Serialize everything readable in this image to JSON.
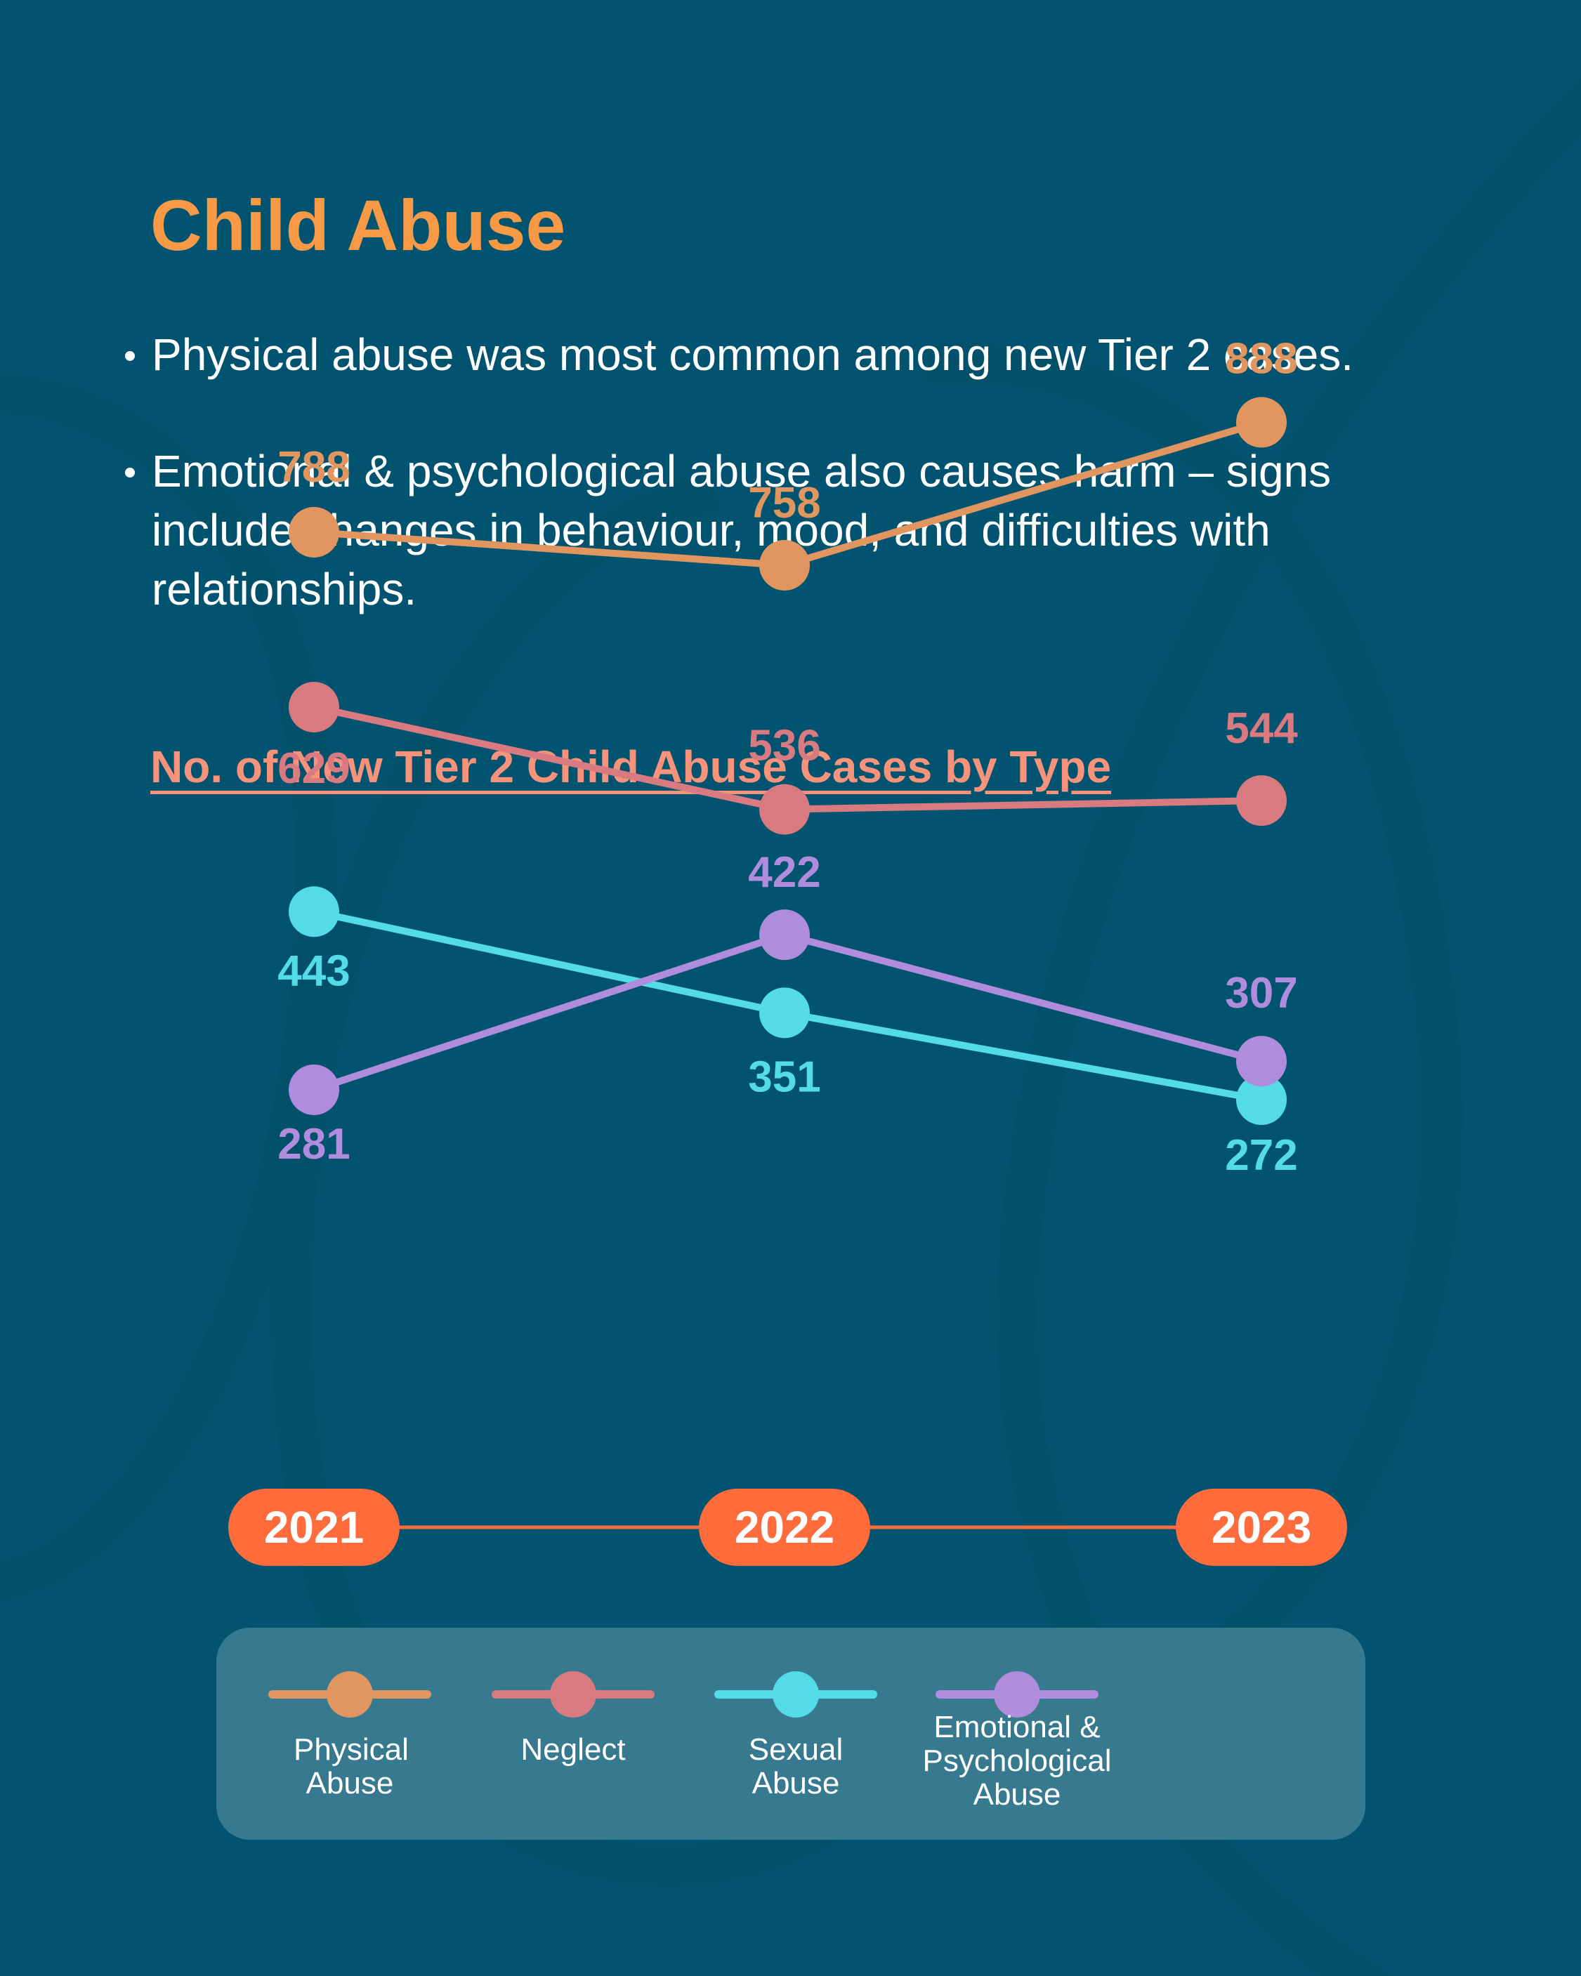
{
  "heading": "Child Abuse",
  "bullets": [
    "Physical abuse was most common among new Tier 2 cases.",
    "Emotional & psychological abuse also causes harm – signs include changes in behaviour, mood, and difficulties with relationships."
  ],
  "colors": {
    "background": "#02536f",
    "heading": "#f89a45",
    "chart_title": "#f7937a",
    "year_pill": "#ff6b3a"
  },
  "chart_data": {
    "type": "line",
    "title": "No. of New Tier 2 Child Abuse Cases by Type",
    "x": [
      "2021",
      "2022",
      "2023"
    ],
    "grid": false,
    "legend_position": "bottom",
    "series": [
      {
        "name": "Physical Abuse",
        "values": [
          788,
          758,
          888
        ],
        "color": "#e1965f"
      },
      {
        "name": "Neglect",
        "values": [
          629,
          536,
          544
        ],
        "color": "#d97a80"
      },
      {
        "name": "Sexual Abuse",
        "values": [
          443,
          351,
          272
        ],
        "color": "#53dbe8"
      },
      {
        "name": "Emotional & Psychological Abuse",
        "values": [
          281,
          422,
          307
        ],
        "color": "#b08ddc"
      }
    ]
  }
}
